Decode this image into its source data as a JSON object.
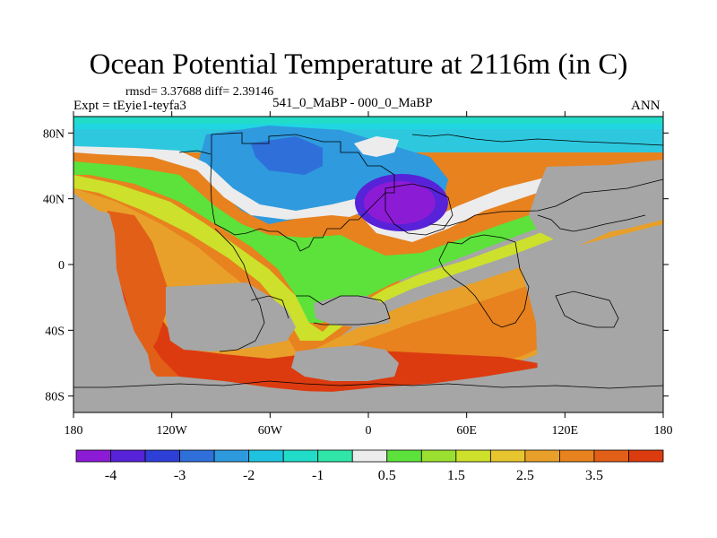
{
  "title": "Ocean Potential Temperature at 2116m (in C)",
  "stats": "rmsd= 3.37688 diff= 2.39146",
  "experiment": "Expt = tEyie1-teyfa3",
  "period": "541_0_MaBP - 000_0_MaBP",
  "season": "ANN",
  "colors": {
    "land": "#a6a6a6",
    "levels": [
      "#8c1bd6",
      "#5722d8",
      "#2e3fd8",
      "#2f6fd9",
      "#2e9ade",
      "#1fc3e0",
      "#21dcc9",
      "#2fe6a8",
      "#ececec",
      "#5ce23a",
      "#9be030",
      "#cde02b",
      "#e6c52e",
      "#e8a02a",
      "#e7821f",
      "#e25f18",
      "#dc3b10"
    ]
  },
  "chart_data": {
    "type": "map",
    "variable": "Ocean Potential Temperature",
    "depth": "2116m",
    "units": "C",
    "projection": "cylindrical equidistant",
    "lon_range": [
      -180,
      180
    ],
    "lat_range": [
      -90,
      90
    ],
    "y_ticks": [
      "80N",
      "40N",
      "0",
      "40S",
      "80S"
    ],
    "y_tick_values": [
      80,
      40,
      0,
      -40,
      -80
    ],
    "x_ticks": [
      "180",
      "120W",
      "60W",
      "0",
      "60E",
      "120E",
      "180"
    ],
    "x_tick_values": [
      -180,
      -120,
      -60,
      0,
      60,
      120,
      180
    ],
    "colorbar_labels": [
      "-4",
      "-3",
      "-2",
      "-1",
      "0.5",
      "1.5",
      "2.5",
      "3.5"
    ],
    "colorbar_levels": 17,
    "features": [
      {
        "name": "cold core",
        "lon": 20,
        "lat": 40,
        "value": -4
      },
      {
        "name": "cold region",
        "lon": -35,
        "lat": 62,
        "value": -2.5
      },
      {
        "name": "zero contour belt",
        "value": 0
      },
      {
        "name": "warm southern band",
        "lat": -60,
        "value": 4
      }
    ]
  }
}
